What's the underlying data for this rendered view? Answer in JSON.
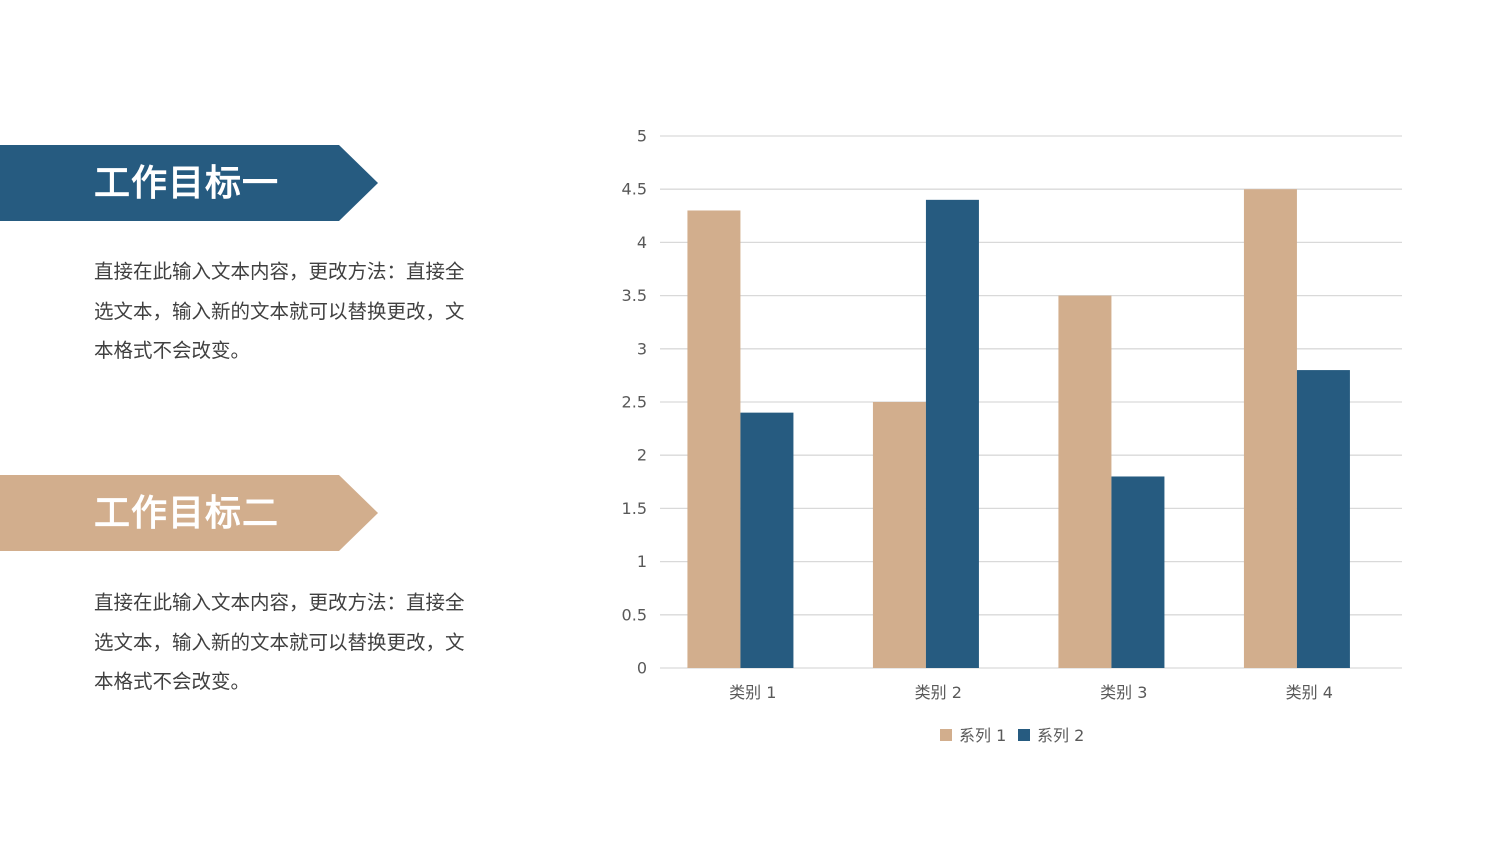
{
  "sections": [
    {
      "title": "工作目标一",
      "color": "#265b80",
      "text": "直接在此输入文本内容，更改方法：直接全选文本，输入新的文本就可以替换更改，文本格式不会改变。"
    },
    {
      "title": "工作目标二",
      "color": "#d2ae8d",
      "text": "直接在此输入文本内容，更改方法：直接全选文本，输入新的文本就可以替换更改，文本格式不会改变。"
    }
  ],
  "chart_data": {
    "type": "bar",
    "categories": [
      "类别 1",
      "类别 2",
      "类别 3",
      "类别 4"
    ],
    "series": [
      {
        "name": "系列 1",
        "values": [
          4.3,
          2.5,
          3.5,
          4.5
        ],
        "color": "#d2ae8d"
      },
      {
        "name": "系列 2",
        "values": [
          2.4,
          4.4,
          1.8,
          2.8
        ],
        "color": "#265b80"
      }
    ],
    "ylim": [
      0,
      5
    ],
    "yticks": [
      "0",
      "0.5",
      "1",
      "1.5",
      "2",
      "2.5",
      "3",
      "3.5",
      "4",
      "4.5",
      "5"
    ],
    "grid": true,
    "legend": "bottom"
  }
}
